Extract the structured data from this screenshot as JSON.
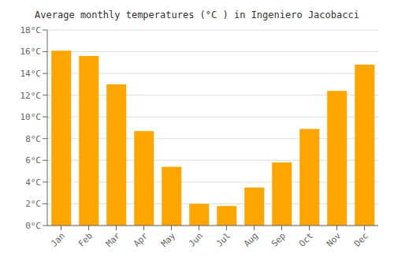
{
  "chart_data": {
    "type": "bar",
    "title": "Average monthly temperatures (°C ) in Ingeniero Jacobacci",
    "categories": [
      "Jan",
      "Feb",
      "Mar",
      "Apr",
      "May",
      "Jun",
      "Jul",
      "Aug",
      "Sep",
      "Oct",
      "Nov",
      "Dec"
    ],
    "values": [
      16.1,
      15.6,
      13.0,
      8.7,
      5.4,
      2.0,
      1.8,
      3.5,
      5.8,
      8.9,
      12.4,
      14.8
    ],
    "color": "#FFA500",
    "ylim": [
      0,
      18
    ],
    "yticks": [
      {
        "value": 0,
        "label": "0°C"
      },
      {
        "value": 2,
        "label": "2°C"
      },
      {
        "value": 4,
        "label": "4°C"
      },
      {
        "value": 6,
        "label": "6°C"
      },
      {
        "value": 8,
        "label": "8°C"
      },
      {
        "value": 10,
        "label": "10°C"
      },
      {
        "value": 12,
        "label": "12°C"
      },
      {
        "value": 14,
        "label": "14°C"
      },
      {
        "value": 16,
        "label": "16°C"
      },
      {
        "value": 18,
        "label": "18°C"
      }
    ],
    "grid": true
  }
}
